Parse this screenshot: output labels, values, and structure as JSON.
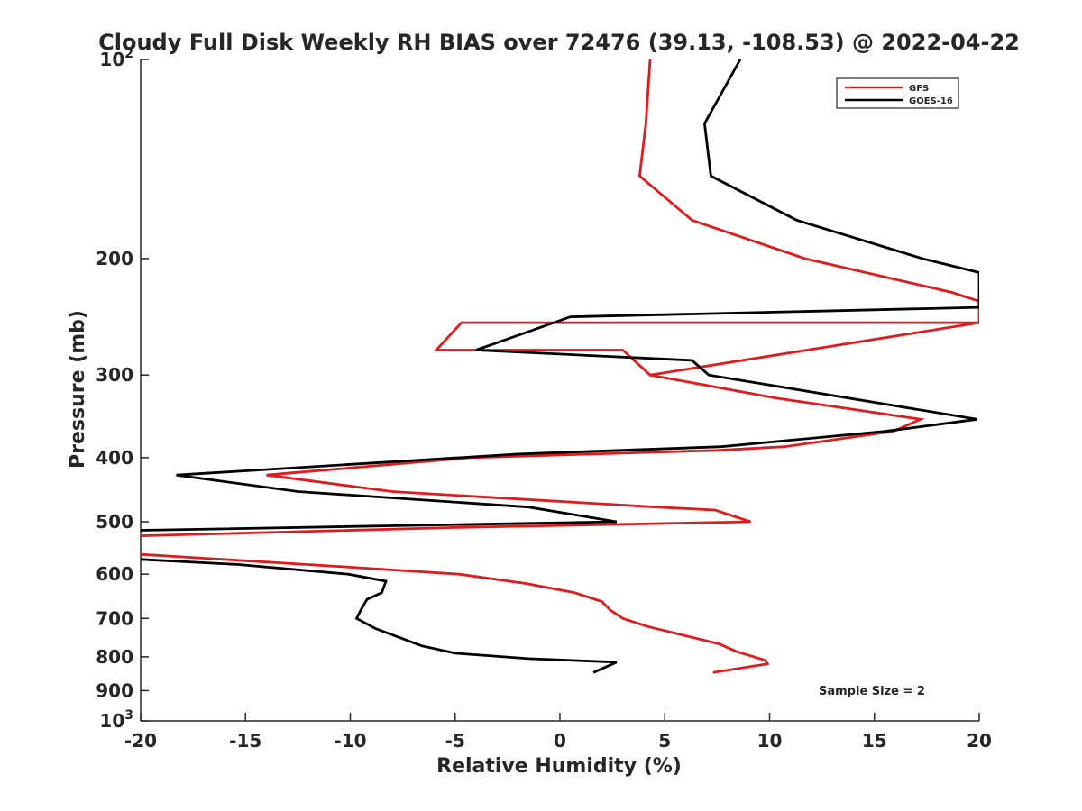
{
  "chart_data": {
    "type": "line",
    "title": "Cloudy Full Disk Weekly RH BIAS over 72476 (39.13, -108.53) @ 2022-04-22",
    "xlabel": "Relative Humidity (%)",
    "ylabel": "Pressure (mb)",
    "xlim": [
      -20,
      20
    ],
    "ylim": [
      100,
      1000
    ],
    "yscale": "log",
    "y_reversed": true,
    "xticks": [
      "-20",
      "-15",
      "-10",
      "-5",
      "0",
      "5",
      "10",
      "15",
      "20"
    ],
    "xtick_values": [
      -20,
      -15,
      -10,
      -5,
      0,
      5,
      10,
      15,
      20
    ],
    "yticks": [
      {
        "value": 100,
        "base": "10",
        "exp": "2"
      },
      {
        "value": 200,
        "label": "200"
      },
      {
        "value": 300,
        "label": "300"
      },
      {
        "value": 400,
        "label": "400"
      },
      {
        "value": 500,
        "label": "500"
      },
      {
        "value": 600,
        "label": "600"
      },
      {
        "value": 700,
        "label": "700"
      },
      {
        "value": 800,
        "label": "800"
      },
      {
        "value": 900,
        "label": "900"
      },
      {
        "value": 1000,
        "base": "10",
        "exp": "3"
      }
    ],
    "legend_position": "top-right",
    "annotation": "Sample Size = 2",
    "grid": false,
    "series": [
      {
        "name": "GFS",
        "color": "#e31a1c",
        "points": [
          [
            4.3,
            100
          ],
          [
            4.1,
            125
          ],
          [
            3.8,
            150
          ],
          [
            6.3,
            175
          ],
          [
            11.7,
            200
          ],
          [
            18.7,
            225
          ],
          [
            20,
            232
          ],
          [
            20,
            250
          ],
          [
            4.3,
            300
          ],
          [
            3.0,
            275
          ],
          [
            -5.9,
            275
          ],
          [
            -4.7,
            250
          ],
          [
            20,
            250
          ],
          [
            4.3,
            300
          ],
          [
            10.3,
            325
          ],
          [
            17.2,
            350
          ],
          [
            15.9,
            365
          ],
          [
            10.7,
            385
          ],
          [
            7.5,
            390
          ],
          [
            -4.3,
            400
          ],
          [
            -14.0,
            425
          ],
          [
            -8.0,
            450
          ],
          [
            4.6,
            475
          ],
          [
            7.4,
            480
          ],
          [
            9.1,
            500
          ],
          [
            -5.0,
            510
          ],
          [
            -20,
            525
          ]
        ]
      },
      {
        "name": "GOES-16",
        "color": "#000000",
        "points": [
          [
            8.6,
            100
          ],
          [
            6.9,
            125
          ],
          [
            7.2,
            150
          ],
          [
            11.3,
            175
          ],
          [
            17.3,
            200
          ],
          [
            20,
            210
          ],
          [
            20,
            237
          ],
          [
            0.5,
            245
          ],
          [
            -4.0,
            275
          ],
          [
            6.3,
            285
          ],
          [
            7.1,
            300
          ],
          [
            19.9,
            350
          ],
          [
            15.5,
            365
          ],
          [
            7.7,
            385
          ],
          [
            -2.0,
            395
          ],
          [
            -18.3,
            425
          ],
          [
            -12.5,
            450
          ],
          [
            -1.5,
            475
          ],
          [
            2.7,
            500
          ],
          [
            -20,
            515
          ]
        ]
      }
    ],
    "series_lower": [
      {
        "name": "GFS",
        "color": "#e31a1c",
        "points": [
          [
            -20,
            560
          ],
          [
            -10.2,
            585
          ],
          [
            -4.8,
            600
          ],
          [
            -1.6,
            620
          ],
          [
            0.7,
            640
          ],
          [
            2.0,
            660
          ],
          [
            2.4,
            680
          ],
          [
            3.0,
            700
          ],
          [
            4.2,
            720
          ],
          [
            7.6,
            765
          ],
          [
            8.4,
            785
          ],
          [
            9.8,
            810
          ],
          [
            9.9,
            820
          ],
          [
            7.3,
            845
          ]
        ]
      },
      {
        "name": "GOES-16",
        "color": "#000000",
        "points": [
          [
            -20,
            570
          ],
          [
            -15.4,
            580
          ],
          [
            -10.1,
            600
          ],
          [
            -8.3,
            615
          ],
          [
            -8.5,
            640
          ],
          [
            -9.2,
            655
          ],
          [
            -9.5,
            680
          ],
          [
            -9.7,
            700
          ],
          [
            -8.8,
            725
          ],
          [
            -7.8,
            745
          ],
          [
            -6.6,
            770
          ],
          [
            -5.0,
            790
          ],
          [
            -1.5,
            805
          ],
          [
            2.7,
            815
          ],
          [
            1.6,
            845
          ]
        ]
      }
    ]
  }
}
